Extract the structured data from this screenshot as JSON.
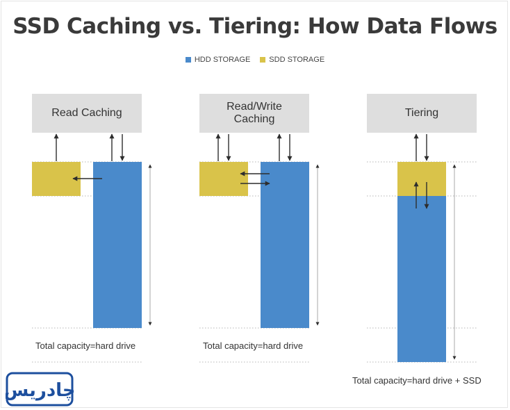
{
  "title": "SSD Caching vs. Tiering: How Data Flows",
  "legend": [
    {
      "label": "HDD STORAGE",
      "color": "#4a8acb"
    },
    {
      "label": "SDD STORAGE",
      "color": "#d9c34a"
    }
  ],
  "colors": {
    "hdd": "#4a8acb",
    "ssd": "#d9c34a",
    "box": "#dedede",
    "arrow": "#2d2d2d",
    "guide": "#b5b5b5",
    "logo": "#1d4f9e"
  },
  "panels": [
    {
      "name": "read-caching",
      "box_lines": [
        "Read Caching"
      ],
      "caption": "Total capacity=hard drive"
    },
    {
      "name": "read-write-caching",
      "box_lines": [
        "Read/Write",
        "Caching"
      ],
      "caption": "Total capacity=hard drive"
    },
    {
      "name": "tiering",
      "box_lines": [
        "Tiering"
      ],
      "caption": "Total capacity=hard drive + SSD"
    }
  ],
  "logo": {
    "text": "چادریس"
  }
}
